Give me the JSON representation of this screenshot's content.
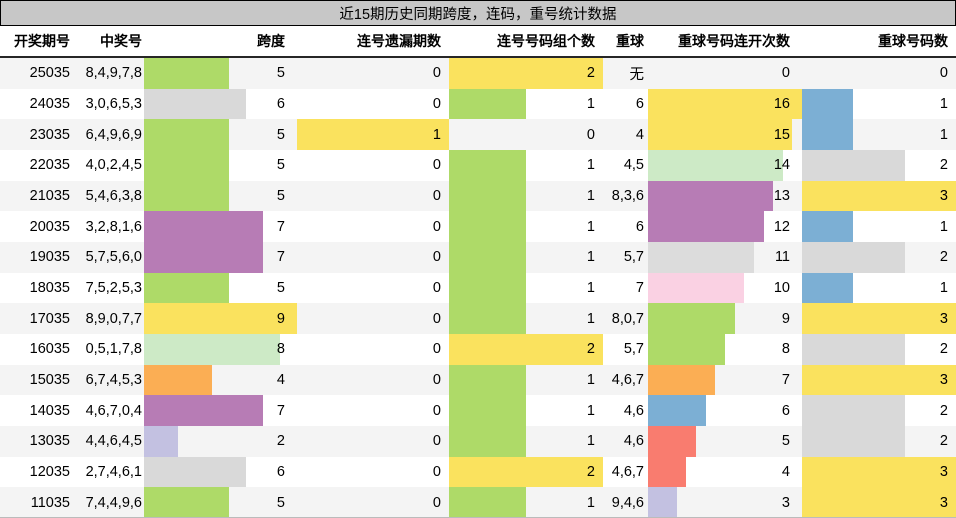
{
  "title": "近15期历史同期跨度，连码，重号统计数据",
  "columns": [
    "开奖期号",
    "中奖号",
    "跨度",
    "连号遗漏期数",
    "连号号码组个数",
    "重球",
    "重球号码连开次数",
    "重球号码数"
  ],
  "colors": {
    "title_bg": "#c7c7c7",
    "row_alt_bg": "#f4f4f4",
    "green": "#aeda68",
    "gray": "#d9d9d9",
    "purple": "#b77cb5",
    "yellow": "#fae25e",
    "pale_green": "#cdeac6",
    "orange": "#fbae54",
    "lavender": "#c3c1e1",
    "blue": "#7cafd4",
    "salmon": "#f97c6f",
    "pink": "#fad1e3"
  },
  "rows": [
    {
      "period": "25035",
      "numbers": "8,4,9,7,8",
      "span": {
        "value": "5",
        "width": 85,
        "color": "#aeda68"
      },
      "miss": {
        "value": "0",
        "width": 0,
        "color": ""
      },
      "groups": {
        "value": "2",
        "width": 154,
        "color": "#fae25e"
      },
      "repeat": "无",
      "streak": {
        "value": "0",
        "width": 0,
        "color": ""
      },
      "count": {
        "value": "0",
        "width": 0,
        "color": ""
      }
    },
    {
      "period": "24035",
      "numbers": "3,0,6,5,3",
      "span": {
        "value": "6",
        "width": 102,
        "color": "#d9d9d9"
      },
      "miss": {
        "value": "0",
        "width": 0,
        "color": ""
      },
      "groups": {
        "value": "1",
        "width": 77,
        "color": "#aeda68"
      },
      "repeat": "6",
      "streak": {
        "value": "16",
        "width": 154,
        "color": "#fae25e"
      },
      "count": {
        "value": "1",
        "width": 51,
        "color": "#7cafd4"
      }
    },
    {
      "period": "23035",
      "numbers": "6,4,9,6,9",
      "span": {
        "value": "5",
        "width": 85,
        "color": "#aeda68"
      },
      "miss": {
        "value": "1",
        "width": 152,
        "color": "#fae25e"
      },
      "groups": {
        "value": "0",
        "width": 0,
        "color": ""
      },
      "repeat": "4",
      "streak": {
        "value": "15",
        "width": 144,
        "color": "#fae25e"
      },
      "count": {
        "value": "1",
        "width": 51,
        "color": "#7cafd4"
      }
    },
    {
      "period": "22035",
      "numbers": "4,0,2,4,5",
      "span": {
        "value": "5",
        "width": 85,
        "color": "#aeda68"
      },
      "miss": {
        "value": "0",
        "width": 0,
        "color": ""
      },
      "groups": {
        "value": "1",
        "width": 77,
        "color": "#aeda68"
      },
      "repeat": "4,5",
      "streak": {
        "value": "14",
        "width": 135,
        "color": "#cdeac6"
      },
      "count": {
        "value": "2",
        "width": 103,
        "color": "#d9d9d9"
      }
    },
    {
      "period": "21035",
      "numbers": "5,4,6,3,8",
      "span": {
        "value": "5",
        "width": 85,
        "color": "#aeda68"
      },
      "miss": {
        "value": "0",
        "width": 0,
        "color": ""
      },
      "groups": {
        "value": "1",
        "width": 77,
        "color": "#aeda68"
      },
      "repeat": "8,3,6",
      "streak": {
        "value": "13",
        "width": 125,
        "color": "#b77cb5"
      },
      "count": {
        "value": "3",
        "width": 154,
        "color": "#fae25e"
      }
    },
    {
      "period": "20035",
      "numbers": "3,2,8,1,6",
      "span": {
        "value": "7",
        "width": 119,
        "color": "#b77cb5"
      },
      "miss": {
        "value": "0",
        "width": 0,
        "color": ""
      },
      "groups": {
        "value": "1",
        "width": 77,
        "color": "#aeda68"
      },
      "repeat": "6",
      "streak": {
        "value": "12",
        "width": 116,
        "color": "#b77cb5"
      },
      "count": {
        "value": "1",
        "width": 51,
        "color": "#7cafd4"
      }
    },
    {
      "period": "19035",
      "numbers": "5,7,5,6,0",
      "span": {
        "value": "7",
        "width": 119,
        "color": "#b77cb5"
      },
      "miss": {
        "value": "0",
        "width": 0,
        "color": ""
      },
      "groups": {
        "value": "1",
        "width": 77,
        "color": "#aeda68"
      },
      "repeat": "5,7",
      "streak": {
        "value": "11",
        "width": 106,
        "color": "#dcdcdc"
      },
      "count": {
        "value": "2",
        "width": 103,
        "color": "#d9d9d9"
      }
    },
    {
      "period": "18035",
      "numbers": "7,5,2,5,3",
      "span": {
        "value": "5",
        "width": 85,
        "color": "#aeda68"
      },
      "miss": {
        "value": "0",
        "width": 0,
        "color": ""
      },
      "groups": {
        "value": "1",
        "width": 77,
        "color": "#aeda68"
      },
      "repeat": "7",
      "streak": {
        "value": "10",
        "width": 96,
        "color": "#fad1e3"
      },
      "count": {
        "value": "1",
        "width": 51,
        "color": "#7cafd4"
      }
    },
    {
      "period": "17035",
      "numbers": "8,9,0,7,7",
      "span": {
        "value": "9",
        "width": 153,
        "color": "#fae25e"
      },
      "miss": {
        "value": "0",
        "width": 0,
        "color": ""
      },
      "groups": {
        "value": "1",
        "width": 77,
        "color": "#aeda68"
      },
      "repeat": "8,0,7",
      "streak": {
        "value": "9",
        "width": 87,
        "color": "#aeda68"
      },
      "count": {
        "value": "3",
        "width": 154,
        "color": "#fae25e"
      }
    },
    {
      "period": "16035",
      "numbers": "0,5,1,7,8",
      "span": {
        "value": "8",
        "width": 136,
        "color": "#cdeac6"
      },
      "miss": {
        "value": "0",
        "width": 0,
        "color": ""
      },
      "groups": {
        "value": "2",
        "width": 154,
        "color": "#fae25e"
      },
      "repeat": "5,7",
      "streak": {
        "value": "8",
        "width": 77,
        "color": "#aeda68"
      },
      "count": {
        "value": "2",
        "width": 103,
        "color": "#d9d9d9"
      }
    },
    {
      "period": "15035",
      "numbers": "6,7,4,5,3",
      "span": {
        "value": "4",
        "width": 68,
        "color": "#fbae54"
      },
      "miss": {
        "value": "0",
        "width": 0,
        "color": ""
      },
      "groups": {
        "value": "1",
        "width": 77,
        "color": "#aeda68"
      },
      "repeat": "4,6,7",
      "streak": {
        "value": "7",
        "width": 67,
        "color": "#fbae54"
      },
      "count": {
        "value": "3",
        "width": 154,
        "color": "#fae25e"
      }
    },
    {
      "period": "14035",
      "numbers": "4,6,7,0,4",
      "span": {
        "value": "7",
        "width": 119,
        "color": "#b77cb5"
      },
      "miss": {
        "value": "0",
        "width": 0,
        "color": ""
      },
      "groups": {
        "value": "1",
        "width": 77,
        "color": "#aeda68"
      },
      "repeat": "4,6",
      "streak": {
        "value": "6",
        "width": 58,
        "color": "#7cafd4"
      },
      "count": {
        "value": "2",
        "width": 103,
        "color": "#d9d9d9"
      }
    },
    {
      "period": "13035",
      "numbers": "4,4,6,4,5",
      "span": {
        "value": "2",
        "width": 34,
        "color": "#c3c1e1"
      },
      "miss": {
        "value": "0",
        "width": 0,
        "color": ""
      },
      "groups": {
        "value": "1",
        "width": 77,
        "color": "#aeda68"
      },
      "repeat": "4,6",
      "streak": {
        "value": "5",
        "width": 48,
        "color": "#f97c6f"
      },
      "count": {
        "value": "2",
        "width": 103,
        "color": "#d9d9d9"
      }
    },
    {
      "period": "12035",
      "numbers": "2,7,4,6,1",
      "span": {
        "value": "6",
        "width": 102,
        "color": "#d9d9d9"
      },
      "miss": {
        "value": "0",
        "width": 0,
        "color": ""
      },
      "groups": {
        "value": "2",
        "width": 154,
        "color": "#fae25e"
      },
      "repeat": "4,6,7",
      "streak": {
        "value": "4",
        "width": 38,
        "color": "#f97c6f"
      },
      "count": {
        "value": "3",
        "width": 154,
        "color": "#fae25e"
      }
    },
    {
      "period": "11035",
      "numbers": "7,4,4,9,6",
      "span": {
        "value": "5",
        "width": 85,
        "color": "#aeda68"
      },
      "miss": {
        "value": "0",
        "width": 0,
        "color": ""
      },
      "groups": {
        "value": "1",
        "width": 77,
        "color": "#aeda68"
      },
      "repeat": "9,4,6",
      "streak": {
        "value": "3",
        "width": 29,
        "color": "#c3c1e1"
      },
      "count": {
        "value": "3",
        "width": 154,
        "color": "#fae25e"
      }
    }
  ]
}
